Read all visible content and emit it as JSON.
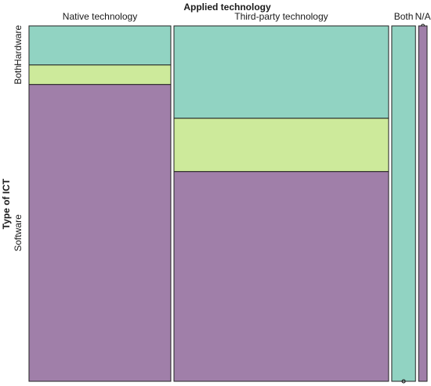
{
  "chart_data": {
    "type": "mosaic",
    "title": "Applied technology",
    "xlabel": "Applied technology",
    "ylabel": "Type of ICT",
    "x_categories": [
      "Native technology",
      "Third-party technology",
      "Both",
      "N/A"
    ],
    "y_categories": [
      "Hardware",
      "Both",
      "Software"
    ],
    "column_widths": [
      0.37,
      0.56,
      0.062,
      0.022
    ],
    "column_segments": [
      [
        0.11,
        0.055,
        0.835
      ],
      [
        0.26,
        0.15,
        0.59
      ],
      [
        1.0,
        0.0,
        0.0
      ],
      [
        0.0,
        0.0,
        1.0
      ]
    ],
    "colors": {
      "Hardware": "#91d3c2",
      "Both": "#cdea9b",
      "Software": "#a07fa9"
    },
    "legend": "none",
    "grid": false
  }
}
